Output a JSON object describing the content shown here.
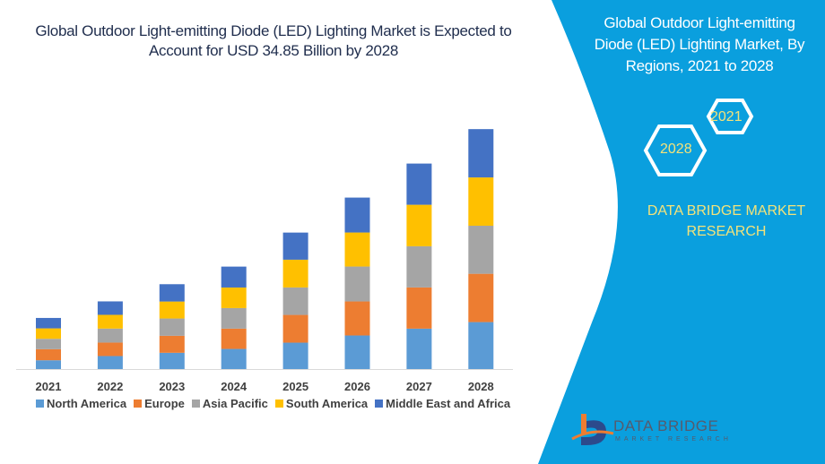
{
  "header": {
    "title": "Global Outdoor Light-emitting Diode (LED) Lighting Market is Expected to Account for USD 34.85 Billion by 2028"
  },
  "panel": {
    "title": "Global Outdoor Light-emitting Diode (LED) Lighting Market, By Regions, 2021 to 2028",
    "hex_start": "2021",
    "hex_end": "2028",
    "brand_line1": "DATA BRIDGE MARKET",
    "brand_line2": "RESEARCH",
    "logo_text": "DATA BRIDGE",
    "logo_sub": "MARKET RESEARCH",
    "background_color": "#0a9fde",
    "accent_text_color": "#f3e27a"
  },
  "chart_data": {
    "type": "bar",
    "stacked": true,
    "categories": [
      "2021",
      "2022",
      "2023",
      "2024",
      "2025",
      "2026",
      "2027",
      "2028"
    ],
    "series": [
      {
        "name": "North America",
        "color": "#5b9bd5",
        "values": [
          1.34,
          1.95,
          2.42,
          2.98,
          3.89,
          4.93,
          5.92,
          6.87
        ]
      },
      {
        "name": "Europe",
        "color": "#ed7d31",
        "values": [
          1.6,
          1.95,
          2.46,
          2.94,
          4.02,
          4.93,
          5.97,
          7.0
        ]
      },
      {
        "name": "Asia Pacific",
        "color": "#a5a5a5",
        "values": [
          1.51,
          2.03,
          2.51,
          2.98,
          3.98,
          5.06,
          5.97,
          6.96
        ]
      },
      {
        "name": "South America",
        "color": "#ffc000",
        "values": [
          1.51,
          1.99,
          2.46,
          2.98,
          4.02,
          4.93,
          6.01,
          7.0
        ]
      },
      {
        "name": "Middle East and Africa",
        "color": "#4472c4",
        "values": [
          1.51,
          1.95,
          2.51,
          3.03,
          3.93,
          5.06,
          5.97,
          7.0
        ]
      }
    ],
    "ylim": [
      0,
      34.85
    ],
    "y_axis_visible": false,
    "grid": false,
    "legend": "bottom"
  }
}
